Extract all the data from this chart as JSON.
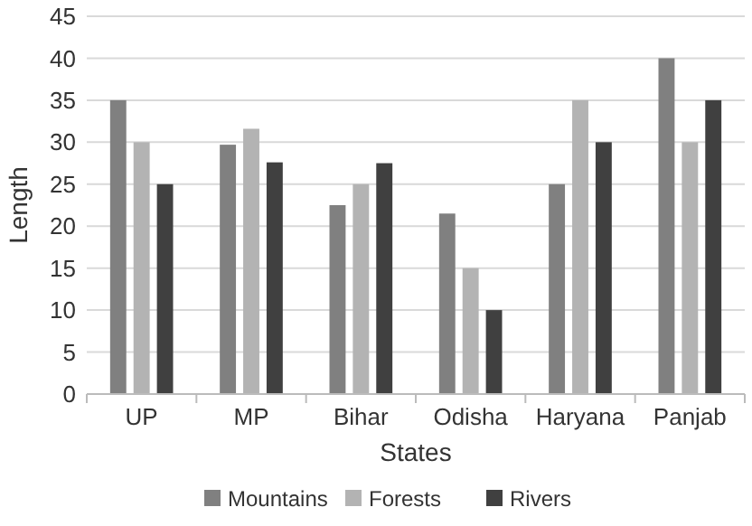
{
  "chart_data": {
    "type": "bar",
    "xlabel": "States",
    "ylabel": "Length",
    "categories": [
      "UP",
      "MP",
      "Bihar",
      "Odisha",
      "Haryana",
      "Panjab"
    ],
    "series": [
      {
        "name": "Mountains",
        "color": "#808080",
        "values": [
          35,
          29.7,
          22.5,
          21.5,
          25,
          40
        ]
      },
      {
        "name": "Forests",
        "color": "#b3b3b3",
        "values": [
          30,
          31.6,
          25,
          15,
          35,
          30
        ]
      },
      {
        "name": "Rivers",
        "color": "#404040",
        "values": [
          25,
          27.6,
          27.5,
          10,
          30,
          35
        ]
      }
    ],
    "ylim": [
      0,
      45
    ],
    "yticks": [
      0,
      5,
      10,
      15,
      20,
      25,
      30,
      35,
      40,
      45
    ],
    "grid": "y",
    "legend": "bottom"
  }
}
